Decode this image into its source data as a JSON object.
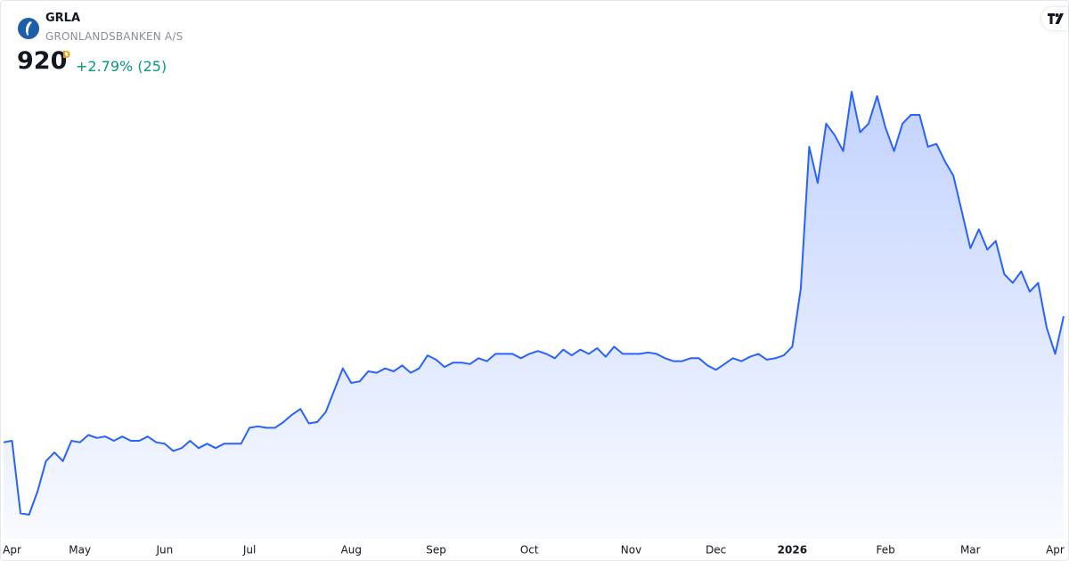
{
  "chart_data": {
    "type": "area",
    "title": "GRLA",
    "subtitle": "GRONLANDSBANKEN A/S",
    "interval": "D",
    "change_label": "+2.79% (25)",
    "color": "#2962ff",
    "values": [
      833,
      834,
      784,
      783,
      799,
      820,
      826,
      820,
      834,
      833,
      838,
      836,
      837,
      834,
      837,
      834,
      834,
      837,
      833,
      832,
      827,
      829,
      834,
      829,
      832,
      829,
      832,
      832,
      832,
      843,
      844,
      843,
      843,
      847,
      852,
      856,
      846,
      847,
      854,
      869,
      884,
      874,
      875,
      882,
      881,
      884,
      882,
      886,
      881,
      884,
      893,
      890,
      885,
      888,
      888,
      887,
      891,
      889,
      894,
      894,
      894,
      891,
      894,
      896,
      894,
      891,
      897,
      893,
      897,
      894,
      898,
      892,
      899,
      894,
      894,
      894,
      895,
      894,
      891,
      889,
      889,
      891,
      891,
      886,
      883,
      887,
      891,
      889,
      892,
      894,
      890,
      891,
      893,
      899,
      939,
      1037,
      1012,
      1053,
      1045,
      1034,
      1075,
      1047,
      1053,
      1072,
      1050,
      1034,
      1053,
      1059,
      1059,
      1037,
      1039,
      1027,
      1017,
      992,
      967,
      980,
      966,
      972,
      949,
      943,
      951,
      937,
      943,
      912,
      894,
      920
    ],
    "xticks": [
      {
        "value": 1,
        "label": "Apr"
      },
      {
        "value": 9,
        "label": "May"
      },
      {
        "value": 19,
        "label": "Jun"
      },
      {
        "value": 29,
        "label": "Jul"
      },
      {
        "value": 41,
        "label": "Aug"
      },
      {
        "value": 51,
        "label": "Sep"
      },
      {
        "value": 62,
        "label": "Oct"
      },
      {
        "value": 74,
        "label": "Nov"
      },
      {
        "value": 84,
        "label": "Dec"
      },
      {
        "value": 93,
        "label": "2026"
      },
      {
        "value": 104,
        "label": "Feb"
      },
      {
        "value": 114,
        "label": "Mar"
      },
      {
        "value": 124,
        "label": "Apr"
      }
    ]
  }
}
